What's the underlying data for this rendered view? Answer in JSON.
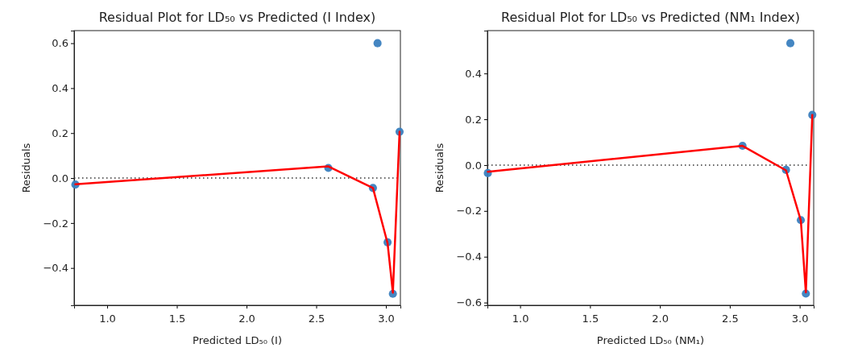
{
  "chart_data": [
    {
      "type": "scatter",
      "title": "Residual Plot for LD₅₀ vs Predicted (I Index)",
      "xlabel": "Predicted LD₅₀ (I)",
      "ylabel": "Residuals",
      "xlim": [
        0.763,
        3.104
      ],
      "ylim": [
        -0.566,
        0.656
      ],
      "xticks": [
        {
          "value": 1,
          "label": "1.0"
        },
        {
          "value": 1.5,
          "label": "1.5"
        },
        {
          "value": 2,
          "label": "2.0"
        },
        {
          "value": 2.5,
          "label": "2.5"
        },
        {
          "value": 3,
          "label": "3.0"
        }
      ],
      "yticks": [
        {
          "value": -0.4,
          "label": "−0.4"
        },
        {
          "value": -0.2,
          "label": "−0.2"
        },
        {
          "value": 0,
          "label": "0.0"
        },
        {
          "value": 0.2,
          "label": "0.2"
        },
        {
          "value": 0.4,
          "label": "0.4"
        },
        {
          "value": 0.6,
          "label": "0.6"
        }
      ],
      "grid": false,
      "ref_lines": [
        {
          "axis": "y",
          "value": 0,
          "color": "#333333",
          "line_style": "dotted"
        }
      ],
      "series": [
        {
          "color": "#3a7fbf",
          "marker": "circle",
          "x": [
            0.772,
            2.587,
            2.907,
            2.94,
            3.012,
            3.05,
            3.098
          ],
          "values": [
            -0.029,
            0.045,
            -0.044,
            0.6,
            -0.286,
            -0.515,
            0.206
          ]
        },
        {
          "type": "line",
          "color": "#ff0000",
          "marker": "none",
          "line_style": "solid",
          "x": [
            0.772,
            2.587,
            2.907,
            3.012,
            3.05,
            3.098
          ],
          "values": [
            -0.028,
            0.052,
            -0.044,
            -0.29,
            -0.51,
            0.206
          ]
        }
      ]
    },
    {
      "type": "scatter",
      "title": "Residual Plot for LD₅₀ vs Predicted (NM₁ Index)",
      "xlabel": "Predicted LD₅₀ (NM₁)",
      "ylabel": "Residuals",
      "xlim": [
        0.766,
        3.1
      ],
      "ylim": [
        -0.612,
        0.587
      ],
      "xticks": [
        {
          "value": 1,
          "label": "1.0"
        },
        {
          "value": 1.5,
          "label": "1.5"
        },
        {
          "value": 2,
          "label": "2.0"
        },
        {
          "value": 2.5,
          "label": "2.5"
        },
        {
          "value": 3,
          "label": "3.0"
        }
      ],
      "yticks": [
        {
          "value": -0.6,
          "label": "−0.6"
        },
        {
          "value": -0.4,
          "label": "−0.4"
        },
        {
          "value": -0.2,
          "label": "−0.2"
        },
        {
          "value": 0,
          "label": "0.0"
        },
        {
          "value": 0.2,
          "label": "0.2"
        },
        {
          "value": 0.4,
          "label": "0.4"
        }
      ],
      "grid": false,
      "ref_lines": [
        {
          "axis": "y",
          "value": 0,
          "color": "#333333",
          "line_style": "dotted"
        }
      ],
      "series": [
        {
          "color": "#3a7fbf",
          "marker": "circle",
          "x": [
            0.769,
            2.591,
            2.902,
            2.933,
            3.008,
            3.044,
            3.09
          ],
          "values": [
            -0.035,
            0.084,
            -0.021,
            0.532,
            -0.24,
            -0.561,
            0.219
          ]
        },
        {
          "type": "line",
          "color": "#ff0000",
          "marker": "none",
          "line_style": "solid",
          "x": [
            0.769,
            2.591,
            2.902,
            3.008,
            3.044,
            3.09
          ],
          "values": [
            -0.029,
            0.084,
            -0.023,
            -0.242,
            -0.556,
            0.219
          ]
        }
      ]
    }
  ]
}
